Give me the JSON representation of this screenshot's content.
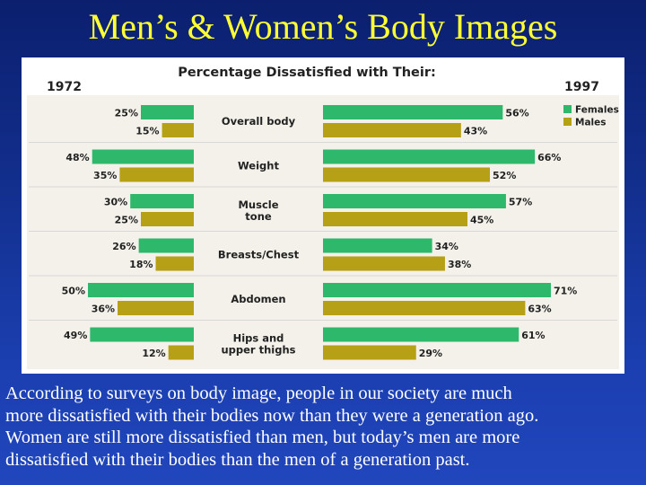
{
  "slide": {
    "title": "Men’s & Women’s Body Images",
    "caption_lines": [
      "According to surveys on body image, people in our society are much",
      "more dissatisfied with their bodies now than they were a generation ago.",
      "Women are still more dissatisfied than men, but today’s men are more",
      "dissatisfied with their bodies than the men of a generation past."
    ]
  },
  "chart_data": {
    "type": "bar",
    "title": "Percentage Dissatisfied with Their:",
    "left_year": "1972",
    "right_year": "1997",
    "categories": [
      [
        "Overall body"
      ],
      [
        "Weight"
      ],
      [
        "Muscle",
        "tone"
      ],
      [
        "Breasts/Chest"
      ],
      [
        "Abdomen"
      ],
      [
        "Hips and",
        "upper thighs"
      ]
    ],
    "series": [
      {
        "name": "Females",
        "color": "#2eb86b",
        "values_1972": [
          25,
          48,
          30,
          26,
          50,
          49
        ],
        "values_1997": [
          56,
          66,
          57,
          34,
          71,
          61
        ]
      },
      {
        "name": "Males",
        "color": "#b5a016",
        "values_1972": [
          15,
          35,
          25,
          18,
          36,
          12
        ],
        "values_1997": [
          43,
          52,
          45,
          38,
          63,
          29
        ]
      }
    ],
    "value_suffix": "%",
    "legend_position": "top-right",
    "colors": {
      "background": "#ffffff",
      "inner_plot": "#f4f1ea",
      "text": "#222222",
      "separator": "#d8d8d8"
    }
  }
}
